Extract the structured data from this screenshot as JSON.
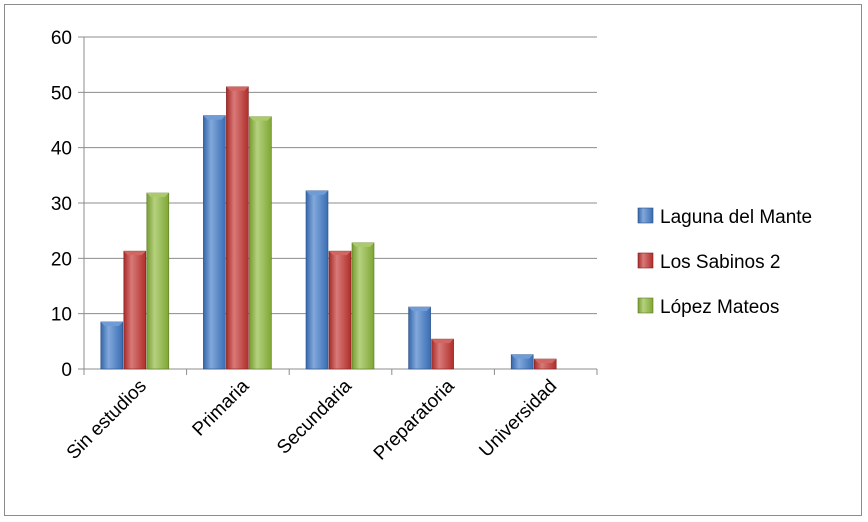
{
  "chart_data": {
    "type": "bar",
    "title": "",
    "xlabel": "",
    "ylabel": "",
    "ylim": [
      0,
      60
    ],
    "yticks": [
      0,
      10,
      20,
      30,
      40,
      50,
      60
    ],
    "grid": true,
    "legend_position": "right",
    "categories": [
      "Sin estudios",
      "Primaria",
      "Secundaria",
      "Preparatoria",
      "Universidad"
    ],
    "series": [
      {
        "name": "Laguna del Mante",
        "color": "#3f79c8",
        "values": [
          8.5,
          45.8,
          32.2,
          11.2,
          2.6
        ]
      },
      {
        "name": "Los Sabinos 2",
        "color": "#c3332f",
        "values": [
          21.3,
          51.0,
          21.3,
          5.4,
          1.8
        ]
      },
      {
        "name": "López Mateos",
        "color": "#8db83a",
        "values": [
          31.8,
          45.6,
          22.8,
          0,
          0
        ]
      }
    ]
  }
}
